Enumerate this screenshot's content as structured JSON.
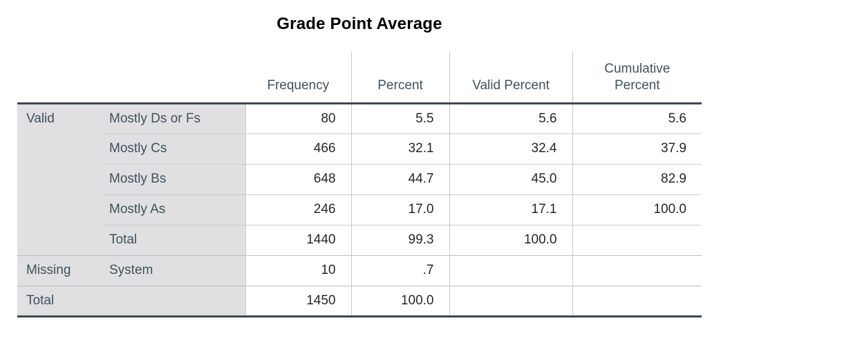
{
  "title": "Grade Point Average",
  "chart_data": {
    "type": "table",
    "title": "Grade Point Average",
    "column_headers": [
      "",
      "",
      "Frequency",
      "Percent",
      "Valid Percent",
      "Cumulative Percent"
    ],
    "rows": [
      [
        "Valid",
        "Mostly Ds or Fs",
        80,
        5.5,
        5.6,
        5.6
      ],
      [
        "",
        "Mostly Cs",
        466,
        32.1,
        32.4,
        37.9
      ],
      [
        "",
        "Mostly Bs",
        648,
        44.7,
        45.0,
        82.9
      ],
      [
        "",
        "Mostly As",
        246,
        17.0,
        17.1,
        100.0
      ],
      [
        "",
        "Total",
        1440,
        99.3,
        100.0,
        ""
      ],
      [
        "Missing",
        "System",
        10,
        0.7,
        "",
        ""
      ],
      [
        "Total",
        "",
        1450,
        100.0,
        "",
        ""
      ]
    ]
  },
  "table": {
    "headers": {
      "frequency": "Frequency",
      "percent": "Percent",
      "valid_percent": "Valid Percent",
      "cumulative_percent": "Cumulative Percent"
    },
    "groups": {
      "valid": "Valid",
      "missing": "Missing",
      "total": "Total"
    },
    "rows": [
      {
        "label": "Mostly Ds or Fs",
        "frequency": "80",
        "percent": "5.5",
        "valid_percent": "5.6",
        "cumulative_percent": "5.6"
      },
      {
        "label": "Mostly Cs",
        "frequency": "466",
        "percent": "32.1",
        "valid_percent": "32.4",
        "cumulative_percent": "37.9"
      },
      {
        "label": "Mostly Bs",
        "frequency": "648",
        "percent": "44.7",
        "valid_percent": "45.0",
        "cumulative_percent": "82.9"
      },
      {
        "label": "Mostly As",
        "frequency": "246",
        "percent": "17.0",
        "valid_percent": "17.1",
        "cumulative_percent": "100.0"
      },
      {
        "label": "Total",
        "frequency": "1440",
        "percent": "99.3",
        "valid_percent": "100.0",
        "cumulative_percent": ""
      },
      {
        "label": "System",
        "frequency": "10",
        "percent": ".7",
        "valid_percent": "",
        "cumulative_percent": ""
      },
      {
        "label": "",
        "frequency": "1450",
        "percent": "100.0",
        "valid_percent": "",
        "cumulative_percent": ""
      }
    ],
    "colors": {
      "stub_background": "#e0e0e2",
      "header_text": "#42505c",
      "data_text": "#262626",
      "thick_rule": "#3e464d",
      "thin_rule": "#c6c9cb",
      "title_text": "#000000"
    }
  }
}
